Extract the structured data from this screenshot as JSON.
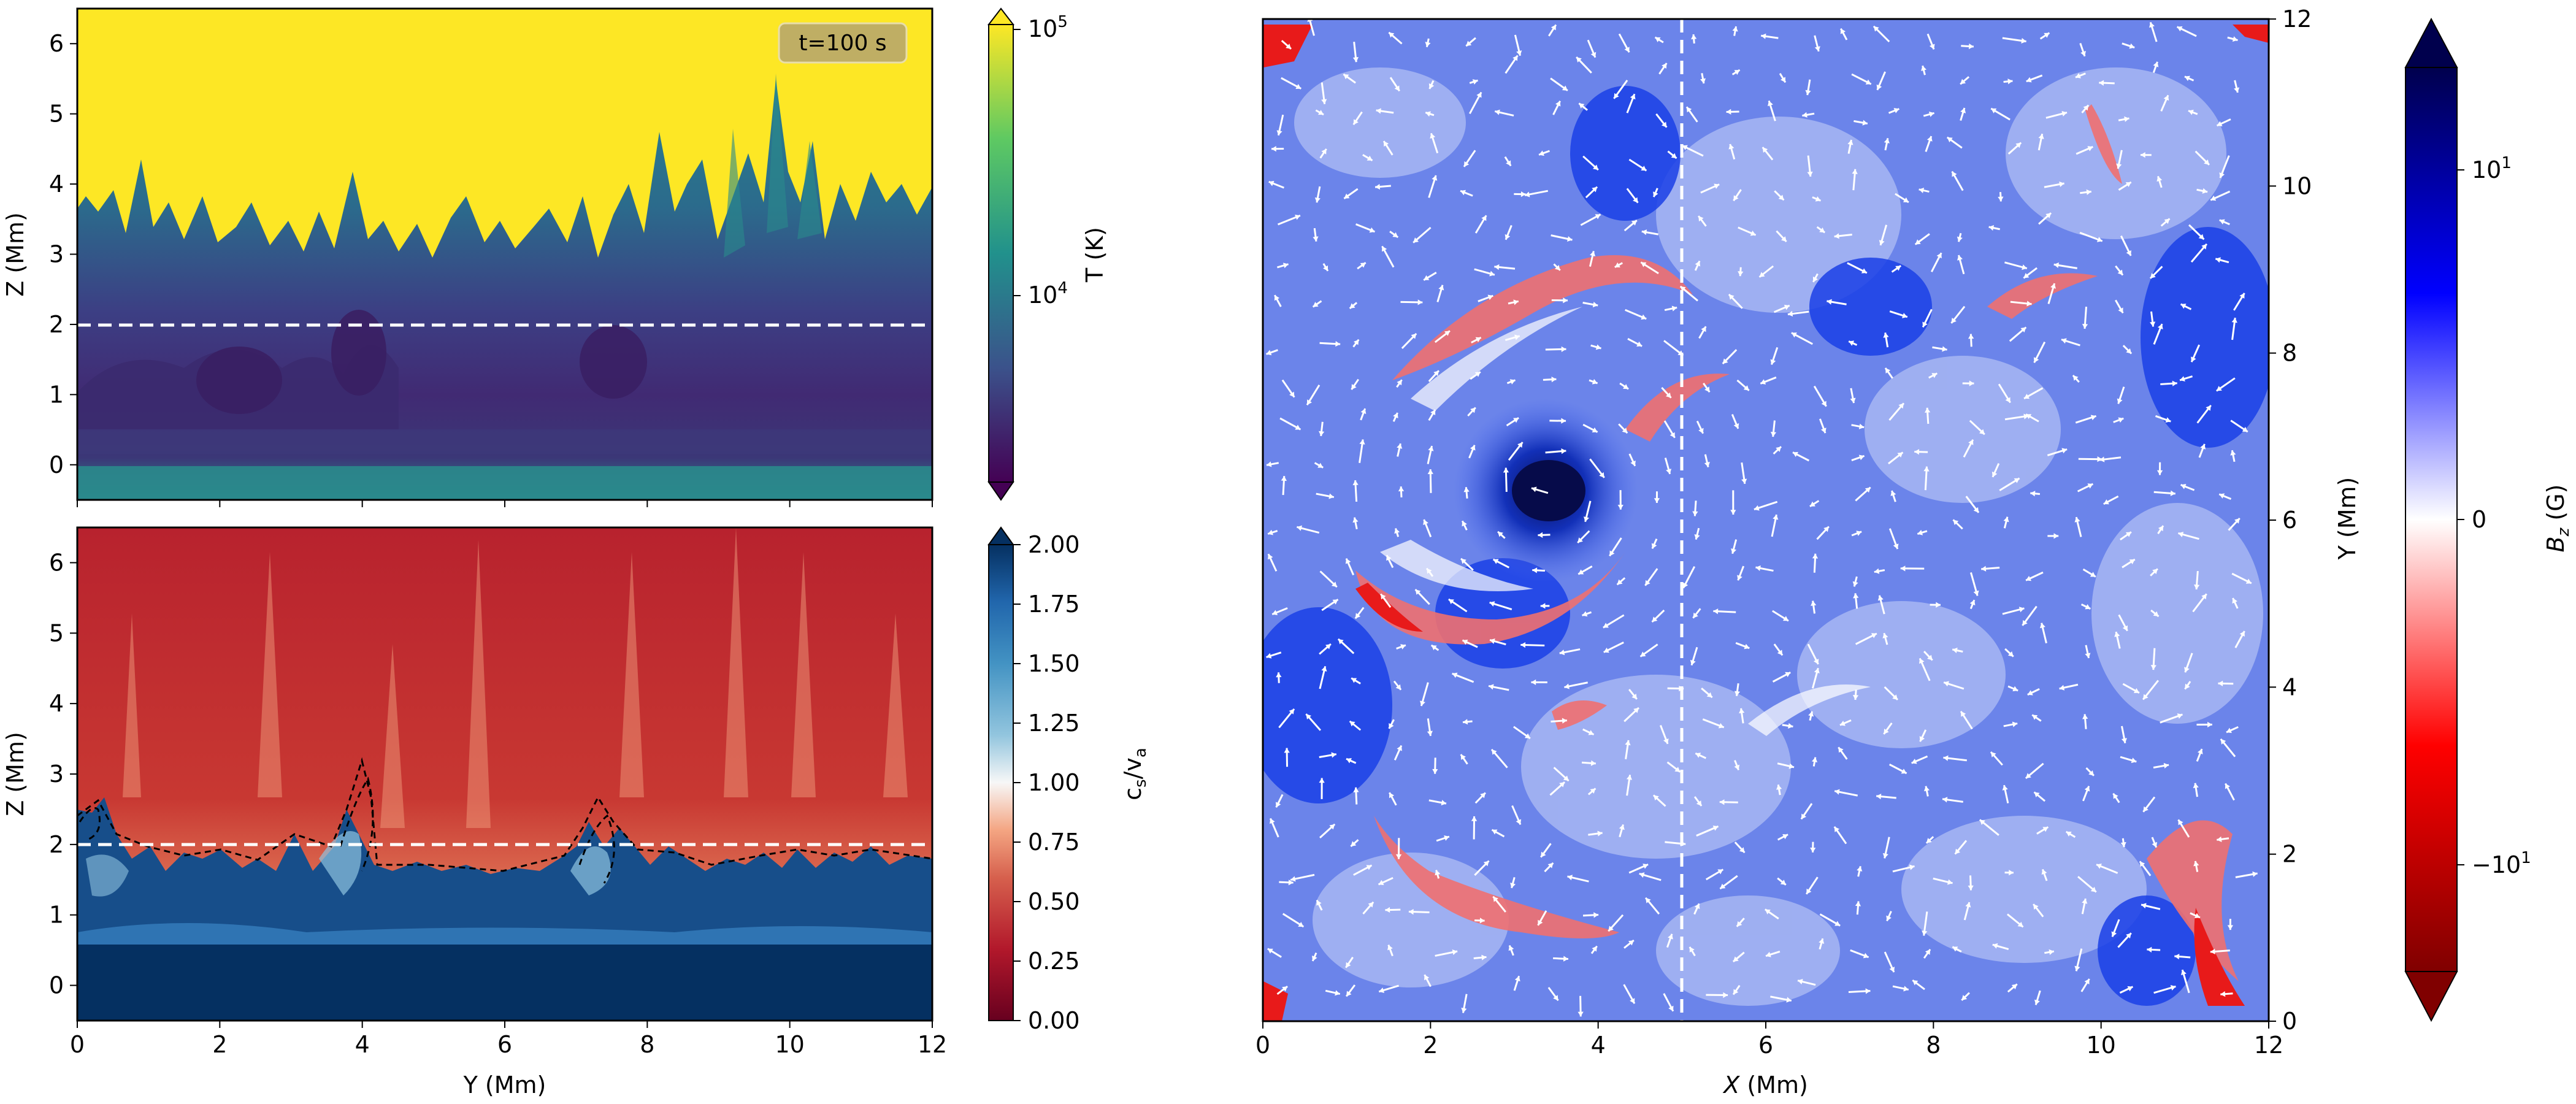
{
  "figure": {
    "description_free": true
  },
  "chart_data": [
    {
      "type": "heatmap",
      "panel": "top-left",
      "title": "",
      "annotation": "t=100 s",
      "xlabel": "",
      "ylabel": "Z (Mm)",
      "xlim": [
        0,
        12
      ],
      "ylim": [
        -0.5,
        6.5
      ],
      "xticks": [
        0,
        2,
        4,
        6,
        8,
        10,
        12
      ],
      "yticks": [
        0,
        1,
        2,
        3,
        4,
        5,
        6
      ],
      "reference_line": {
        "z": 2.0,
        "style": "dashed",
        "color": "#ffffff"
      },
      "colorbar": {
        "label": "T (K)",
        "scale": "log",
        "ticks": [
          "10^4",
          "10^5"
        ],
        "range": [
          2000,
          100000
        ],
        "colormap": "viridis",
        "extend": "both"
      },
      "colors": {
        "hot": "#fde725",
        "mid": "#21918c",
        "cool": "#3b2c6e"
      }
    },
    {
      "type": "heatmap",
      "panel": "bottom-left",
      "title": "",
      "xlabel": "Y (Mm)",
      "ylabel": "Z (Mm)",
      "xlim": [
        0,
        12
      ],
      "ylim": [
        -0.5,
        6.5
      ],
      "xticks": [
        0,
        2,
        4,
        6,
        8,
        10,
        12
      ],
      "yticks": [
        0,
        1,
        2,
        3,
        4,
        5,
        6
      ],
      "reference_line": {
        "z": 2.0,
        "style": "dashed",
        "color": "#ffffff"
      },
      "contour": {
        "level": 1.0,
        "style": "dashed",
        "color": "#000000"
      },
      "colorbar": {
        "label": "c_s/v_a",
        "scale": "linear",
        "range": [
          0.0,
          2.0
        ],
        "ticks": [
          "0.00",
          "0.25",
          "0.50",
          "0.75",
          "1.00",
          "1.25",
          "1.50",
          "1.75",
          "2.00"
        ],
        "colormap": "RdBu",
        "extend": "max"
      },
      "colors": {
        "low": "#b2182b",
        "high": "#053061"
      }
    },
    {
      "type": "heatmap",
      "panel": "right",
      "title": "",
      "xlabel": "X (Mm)",
      "ylabel": "Y (Mm)",
      "xlim": [
        0,
        12
      ],
      "ylim": [
        0,
        12
      ],
      "xticks": [
        0,
        2,
        4,
        6,
        8,
        10,
        12
      ],
      "yticks": [
        0,
        2,
        4,
        6,
        8,
        10,
        12
      ],
      "ylabel_side": "right",
      "reference_line": {
        "x": 5.0,
        "style": "dashed",
        "color": "#ffffff"
      },
      "overlay": "velocity vectors (white arrows)",
      "colorbar": {
        "label": "B_z (G)",
        "scale": "symlog",
        "ticks": [
          "-10^1",
          "0",
          "10^1"
        ],
        "colormap": "seismic_r",
        "extend": "both"
      },
      "colors": {
        "positive": "#0033dd",
        "zero": "#ffffff",
        "negative": "#dd0000"
      }
    }
  ]
}
